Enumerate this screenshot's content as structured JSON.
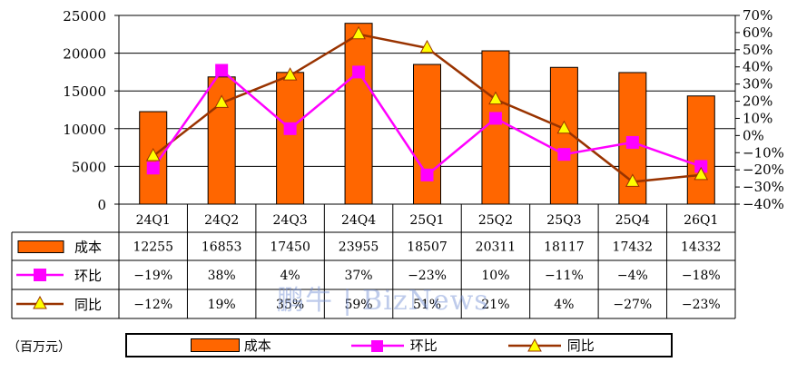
{
  "chart_data": {
    "type": "bar",
    "categories": [
      "24Q1",
      "24Q2",
      "24Q3",
      "24Q4",
      "25Q1",
      "25Q2",
      "25Q3",
      "25Q4",
      "26Q1"
    ],
    "series": [
      {
        "name": "成本",
        "kind": "bar",
        "axis": "left",
        "color": "#ff6600",
        "values": [
          12255,
          16853,
          17450,
          23955,
          18507,
          20311,
          18117,
          17432,
          14332
        ],
        "labels": [
          "12255",
          "16853",
          "17450",
          "23955",
          "18507",
          "20311",
          "18117",
          "17432",
          "14332"
        ]
      },
      {
        "name": "环比",
        "kind": "line",
        "axis": "right",
        "color": "#ff00ff",
        "marker": "square",
        "values": [
          -19,
          38,
          4,
          37,
          -23,
          10,
          -11,
          -4,
          -18
        ],
        "labels": [
          "−19%",
          "38%",
          "4%",
          "37%",
          "−23%",
          "10%",
          "−11%",
          "−4%",
          "−18%"
        ]
      },
      {
        "name": "同比",
        "kind": "line",
        "axis": "right",
        "color": "#993300",
        "marker": "triangle",
        "values": [
          -12,
          19,
          35,
          59,
          51,
          21,
          4,
          -27,
          -23
        ],
        "labels": [
          "−12%",
          "19%",
          "35%",
          "59%",
          "51%",
          "21%",
          "4%",
          "−27%",
          "−23%"
        ]
      }
    ],
    "y_left": {
      "min": 0,
      "max": 25000,
      "ticks": [
        "0",
        "5000",
        "10000",
        "15000",
        "20000",
        "25000"
      ]
    },
    "y_right": {
      "min": -40,
      "max": 70,
      "ticks": [
        "−40%",
        "−30%",
        "−20%",
        "−10%",
        "0%",
        "10%",
        "20%",
        "30%",
        "40%",
        "50%",
        "60%",
        "70%"
      ]
    },
    "grid": true,
    "legend": "bottom"
  },
  "unit": "（百万元）",
  "watermark": "鹏牛 | BizNews"
}
